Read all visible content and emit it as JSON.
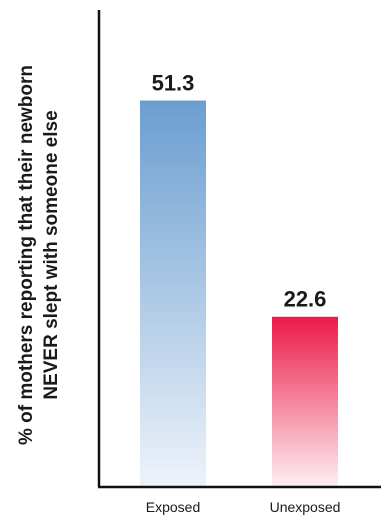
{
  "chart_data": {
    "type": "bar",
    "ylabel_lines": [
      "% of mothers reporting that their newborn",
      "NEVER slept with someone else"
    ],
    "categories": [
      "Exposed",
      "Unexposed"
    ],
    "values": [
      51.3,
      22.6
    ],
    "value_labels": [
      "51.3",
      "22.6"
    ],
    "ylim": [
      0,
      60
    ],
    "grid": false,
    "legend": false,
    "colors": {
      "exposed_top": "#6a9ed0",
      "exposed_bottom": "#eef3fa",
      "unexposed_top": "#ec1a48",
      "unexposed_bottom": "#fdf0f3",
      "axis": "#111111"
    }
  }
}
